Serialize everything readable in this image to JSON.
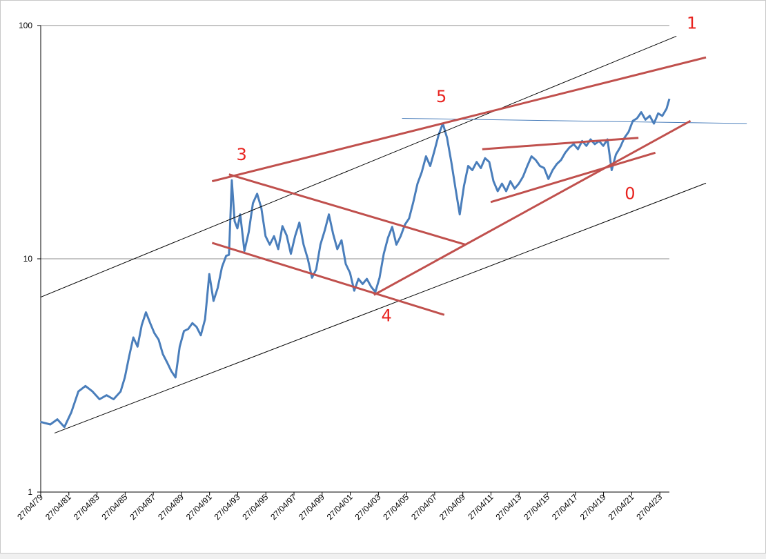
{
  "chart_data": {
    "type": "line",
    "title": "",
    "xlabel": "",
    "ylabel": "",
    "y_scale": "log",
    "ylim": [
      1,
      100
    ],
    "y_ticks": [
      "100",
      "10",
      "1"
    ],
    "x_tick_labels": [
      "27/04/79",
      "27/04/81",
      "27/04/83",
      "27/04/85",
      "27/04/87",
      "27/04/89",
      "27/04/91",
      "27/04/93",
      "27/04/95",
      "27/04/97",
      "27/04/99",
      "27/04/01",
      "27/04/03",
      "27/04/05",
      "27/04/07",
      "27/04/09",
      "27/04/11",
      "27/04/13",
      "27/04/15",
      "27/04/17",
      "27/04/19",
      "27/04/21",
      "27/04/23"
    ],
    "x_range": [
      1979.32,
      2024.0
    ],
    "grid": "horizontal major lines at 1, 10, 100",
    "series": [
      {
        "color": "#4a7ebb",
        "points": [
          [
            1979.3,
            2.0
          ],
          [
            1980.0,
            1.95
          ],
          [
            1980.5,
            2.05
          ],
          [
            1981.0,
            1.9
          ],
          [
            1981.5,
            2.2
          ],
          [
            1982.0,
            2.7
          ],
          [
            1982.5,
            2.85
          ],
          [
            1983.0,
            2.7
          ],
          [
            1983.5,
            2.5
          ],
          [
            1984.0,
            2.6
          ],
          [
            1984.5,
            2.5
          ],
          [
            1985.0,
            2.7
          ],
          [
            1985.3,
            3.1
          ],
          [
            1985.6,
            3.8
          ],
          [
            1985.9,
            4.6
          ],
          [
            1986.2,
            4.2
          ],
          [
            1986.5,
            5.2
          ],
          [
            1986.8,
            5.9
          ],
          [
            1987.1,
            5.3
          ],
          [
            1987.4,
            4.8
          ],
          [
            1987.7,
            4.5
          ],
          [
            1988.0,
            3.9
          ],
          [
            1988.3,
            3.6
          ],
          [
            1988.6,
            3.3
          ],
          [
            1988.9,
            3.1
          ],
          [
            1989.2,
            4.2
          ],
          [
            1989.5,
            4.9
          ],
          [
            1989.8,
            5.0
          ],
          [
            1990.1,
            5.3
          ],
          [
            1990.4,
            5.1
          ],
          [
            1990.7,
            4.7
          ],
          [
            1991.0,
            5.5
          ],
          [
            1991.3,
            8.6
          ],
          [
            1991.6,
            6.6
          ],
          [
            1991.9,
            7.5
          ],
          [
            1992.2,
            9.2
          ],
          [
            1992.5,
            10.3
          ],
          [
            1992.7,
            10.4
          ],
          [
            1992.9,
            21.7
          ],
          [
            1993.1,
            14.5
          ],
          [
            1993.3,
            13.5
          ],
          [
            1993.5,
            15.5
          ],
          [
            1993.8,
            10.8
          ],
          [
            1994.1,
            13.0
          ],
          [
            1994.4,
            17.3
          ],
          [
            1994.7,
            19.0
          ],
          [
            1995.0,
            16.5
          ],
          [
            1995.3,
            12.5
          ],
          [
            1995.6,
            11.5
          ],
          [
            1995.9,
            12.5
          ],
          [
            1996.2,
            11.0
          ],
          [
            1996.5,
            13.8
          ],
          [
            1996.8,
            12.6
          ],
          [
            1997.1,
            10.5
          ],
          [
            1997.4,
            12.5
          ],
          [
            1997.7,
            14.3
          ],
          [
            1998.0,
            11.5
          ],
          [
            1998.3,
            10.0
          ],
          [
            1998.6,
            8.3
          ],
          [
            1998.9,
            9.0
          ],
          [
            1999.2,
            11.5
          ],
          [
            1999.5,
            13.2
          ],
          [
            1999.8,
            15.5
          ],
          [
            2000.1,
            12.8
          ],
          [
            2000.4,
            11.0
          ],
          [
            2000.7,
            12.0
          ],
          [
            2001.0,
            9.5
          ],
          [
            2001.3,
            8.7
          ],
          [
            2001.6,
            7.3
          ],
          [
            2001.9,
            8.2
          ],
          [
            2002.2,
            7.8
          ],
          [
            2002.5,
            8.2
          ],
          [
            2002.8,
            7.6
          ],
          [
            2003.1,
            7.2
          ],
          [
            2003.4,
            8.3
          ],
          [
            2003.7,
            10.5
          ],
          [
            2004.0,
            12.3
          ],
          [
            2004.3,
            13.7
          ],
          [
            2004.6,
            11.5
          ],
          [
            2004.9,
            12.5
          ],
          [
            2005.2,
            14.0
          ],
          [
            2005.5,
            14.9
          ],
          [
            2005.8,
            17.5
          ],
          [
            2006.1,
            21.0
          ],
          [
            2006.4,
            23.5
          ],
          [
            2006.7,
            27.5
          ],
          [
            2007.0,
            25.0
          ],
          [
            2007.3,
            29.0
          ],
          [
            2007.6,
            34.0
          ],
          [
            2007.9,
            38.0
          ],
          [
            2008.2,
            33.0
          ],
          [
            2008.5,
            26.0
          ],
          [
            2008.8,
            20.0
          ],
          [
            2009.1,
            15.5
          ],
          [
            2009.4,
            20.5
          ],
          [
            2009.7,
            25.0
          ],
          [
            2010.0,
            24.0
          ],
          [
            2010.3,
            26.0
          ],
          [
            2010.6,
            24.5
          ],
          [
            2010.9,
            27.0
          ],
          [
            2011.2,
            26.0
          ],
          [
            2011.5,
            21.5
          ],
          [
            2011.8,
            19.5
          ],
          [
            2012.1,
            21.0
          ],
          [
            2012.4,
            19.5
          ],
          [
            2012.7,
            21.5
          ],
          [
            2013.0,
            20.0
          ],
          [
            2013.3,
            21.0
          ],
          [
            2013.6,
            22.5
          ],
          [
            2013.9,
            25.0
          ],
          [
            2014.2,
            27.5
          ],
          [
            2014.5,
            26.5
          ],
          [
            2014.8,
            25.0
          ],
          [
            2015.1,
            24.5
          ],
          [
            2015.4,
            22.0
          ],
          [
            2015.7,
            24.0
          ],
          [
            2016.0,
            25.5
          ],
          [
            2016.3,
            26.5
          ],
          [
            2016.6,
            28.5
          ],
          [
            2016.9,
            30.0
          ],
          [
            2017.2,
            31.0
          ],
          [
            2017.5,
            29.5
          ],
          [
            2017.8,
            32.0
          ],
          [
            2018.1,
            30.5
          ],
          [
            2018.4,
            32.5
          ],
          [
            2018.7,
            31.0
          ],
          [
            2019.0,
            32.0
          ],
          [
            2019.3,
            30.5
          ],
          [
            2019.6,
            32.5
          ],
          [
            2019.9,
            24.0
          ],
          [
            2020.2,
            28.0
          ],
          [
            2020.5,
            30.0
          ],
          [
            2020.8,
            33.0
          ],
          [
            2021.1,
            35.0
          ],
          [
            2021.4,
            39.0
          ],
          [
            2021.7,
            40.0
          ],
          [
            2022.0,
            42.5
          ],
          [
            2022.3,
            39.5
          ],
          [
            2022.6,
            41.0
          ],
          [
            2022.9,
            38.0
          ],
          [
            2023.2,
            42.0
          ],
          [
            2023.5,
            41.0
          ],
          [
            2023.8,
            44.0
          ],
          [
            2024.0,
            48.5
          ]
        ]
      }
    ],
    "trendlines": [
      {
        "color": "#000000",
        "from": [
          1979.32,
          6.85
        ],
        "to": [
          2024.5,
          90.0
        ]
      },
      {
        "color": "#000000",
        "from": [
          1980.3,
          1.79
        ],
        "to": [
          2026.6,
          21.1
        ]
      },
      {
        "color": "#4a7ebb",
        "from": [
          2005.0,
          40.0
        ],
        "to": [
          2029.5,
          38.0
        ]
      },
      {
        "color": "#c0504d",
        "from": [
          1991.5,
          21.5
        ],
        "to": [
          2026.6,
          73.0
        ]
      },
      {
        "color": "#c0504d",
        "from": [
          1992.7,
          23.0
        ],
        "to": [
          2009.5,
          11.5
        ]
      },
      {
        "color": "#c0504d",
        "from": [
          1991.5,
          11.7
        ],
        "to": [
          2008.0,
          5.75
        ]
      },
      {
        "color": "#c0504d",
        "from": [
          2003.0,
          7.0
        ],
        "to": [
          2025.5,
          39.0
        ]
      },
      {
        "color": "#c0504d",
        "from": [
          2010.7,
          29.5
        ],
        "to": [
          2021.8,
          33.0
        ]
      },
      {
        "color": "#c0504d",
        "from": [
          2011.3,
          17.5
        ],
        "to": [
          2023.0,
          28.5
        ]
      }
    ],
    "annotations": [
      {
        "text": "1",
        "at": [
          2025.6,
          97.0
        ]
      },
      {
        "text": "5",
        "at": [
          2007.8,
          47.0
        ]
      },
      {
        "text": "3",
        "at": [
          1993.6,
          26.5
        ]
      },
      {
        "text": "4",
        "at": [
          2003.9,
          5.4
        ]
      },
      {
        "text": "0",
        "at": [
          2021.2,
          18.0
        ]
      }
    ]
  }
}
